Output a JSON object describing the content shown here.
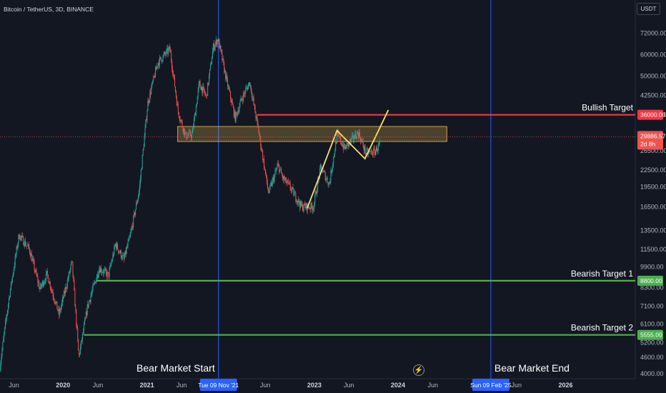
{
  "header": {
    "title": "Bitcoin / TetherUS, 3D, BINANCE",
    "currency": "USDT"
  },
  "colors": {
    "background": "#131722",
    "up": "#26a69a",
    "down": "#ef5350",
    "resistance": "#f23645",
    "support": "#4caf50",
    "zone": "#f5c451",
    "path": "#f8e16c",
    "vline": "#2962ff"
  },
  "icons": {
    "logo": "lightning-icon"
  },
  "chart_data": {
    "type": "candlestick",
    "y_scale": "log",
    "ylim": [
      3900,
      82000
    ],
    "y_ticks": [
      72000,
      60000,
      50000,
      42500,
      36000,
      26500,
      22500,
      19500,
      16500,
      13500,
      11500,
      9900,
      8300,
      7100,
      6100,
      5200,
      4600,
      4000
    ],
    "y_tick_labels": [
      "72000.00",
      "60000.00",
      "50000.00",
      "42500.00",
      "36000.00",
      "26500.00",
      "22500.00",
      "19500.00",
      "16500.00",
      "13500.00",
      "11500.00",
      "9900.00",
      "8300.00",
      "7100.00",
      "6100.00",
      "5200.00",
      "4600.00",
      "4000.00"
    ],
    "x_range": [
      "2019-04-01",
      "2026-11-01"
    ],
    "x_ticks": [
      {
        "date": "2019-06-01",
        "label": "Jun",
        "year": false
      },
      {
        "date": "2020-01-01",
        "label": "2020",
        "year": true
      },
      {
        "date": "2020-06-01",
        "label": "Jun",
        "year": false
      },
      {
        "date": "2021-01-01",
        "label": "2021",
        "year": true
      },
      {
        "date": "2021-06-01",
        "label": "Jun",
        "year": false
      },
      {
        "date": "2022-06-01",
        "label": "Jun",
        "year": false
      },
      {
        "date": "2023-01-01",
        "label": "2023",
        "year": true
      },
      {
        "date": "2023-06-01",
        "label": "Jun",
        "year": false
      },
      {
        "date": "2024-01-01",
        "label": "2024",
        "year": true
      },
      {
        "date": "2024-06-01",
        "label": "Jun",
        "year": false
      },
      {
        "date": "2025-06-01",
        "label": "Jun",
        "year": false
      },
      {
        "date": "2026-01-01",
        "label": "2026",
        "year": true
      }
    ],
    "price_path": [
      [
        "2019-04-01",
        4100
      ],
      [
        "2019-05-15",
        7800
      ],
      [
        "2019-06-26",
        13000
      ],
      [
        "2019-08-10",
        11500
      ],
      [
        "2019-09-25",
        8200
      ],
      [
        "2019-10-26",
        9300
      ],
      [
        "2019-12-18",
        6600
      ],
      [
        "2020-02-12",
        10300
      ],
      [
        "2020-03-13",
        4600
      ],
      [
        "2020-04-20",
        7100
      ],
      [
        "2020-06-10",
        9800
      ],
      [
        "2020-07-20",
        9200
      ],
      [
        "2020-08-20",
        12000
      ],
      [
        "2020-09-25",
        10500
      ],
      [
        "2020-10-25",
        13100
      ],
      [
        "2020-12-01",
        19000
      ],
      [
        "2021-01-08",
        40000
      ],
      [
        "2021-02-20",
        56000
      ],
      [
        "2021-04-14",
        63000
      ],
      [
        "2021-05-20",
        37000
      ],
      [
        "2021-06-22",
        30000
      ],
      [
        "2021-07-20",
        30500
      ],
      [
        "2021-08-20",
        47000
      ],
      [
        "2021-09-20",
        42000
      ],
      [
        "2021-10-20",
        64000
      ],
      [
        "2021-11-10",
        68500
      ],
      [
        "2021-12-20",
        47000
      ],
      [
        "2022-01-24",
        35000
      ],
      [
        "2022-02-20",
        41000
      ],
      [
        "2022-03-28",
        47500
      ],
      [
        "2022-05-10",
        30000
      ],
      [
        "2022-06-18",
        18500
      ],
      [
        "2022-07-30",
        23500
      ],
      [
        "2022-08-20",
        21000
      ],
      [
        "2022-09-20",
        19500
      ],
      [
        "2022-11-09",
        16500
      ],
      [
        "2022-12-31",
        16500
      ],
      [
        "2023-02-01",
        23000
      ],
      [
        "2023-03-10",
        20000
      ],
      [
        "2023-04-14",
        30500
      ],
      [
        "2023-05-15",
        27000
      ],
      [
        "2023-07-14",
        31000
      ],
      [
        "2023-08-17",
        26000
      ],
      [
        "2023-09-25",
        26300
      ],
      [
        "2023-10-15",
        28000
      ]
    ],
    "last_price": {
      "value": 29886.57,
      "label": "29886.57",
      "countdown": "2d 8h",
      "date": "2023-10-15"
    },
    "zone": {
      "x0": "2021-05-15",
      "x1": "2024-08-01",
      "y_low": 28700,
      "y_high": 32600
    },
    "projection": {
      "points": [
        [
          "2022-12-01",
          16300
        ],
        [
          "2023-04-10",
          31500
        ],
        [
          "2023-08-10",
          24800
        ],
        [
          "2023-11-20",
          37500
        ]
      ]
    },
    "levels": [
      {
        "name": "Bullish Target",
        "value": 36000,
        "value_label": "36000.00",
        "x0": "2022-04-25",
        "color": "#f23645"
      },
      {
        "name": "Bearish Target 1",
        "value": 8800,
        "value_label": "8800.00",
        "x0": "2020-05-25",
        "color": "#4caf50"
      },
      {
        "name": "Bearish Target 2",
        "value": 5555,
        "value_label": "5555.00",
        "x0": "2020-04-01",
        "color": "#4caf50"
      }
    ],
    "vertical_markers": [
      {
        "date": "2021-11-09",
        "label": "Bear Market Start",
        "time_label": "Tue 09 Nov '21"
      },
      {
        "date": "2025-02-09",
        "label": "Bear Market End",
        "time_label": "Sun 09 Feb '25"
      }
    ]
  }
}
